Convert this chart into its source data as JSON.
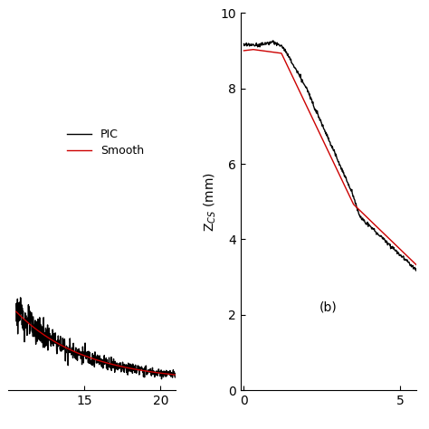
{
  "panel_a": {
    "xlim": [
      10,
      21
    ],
    "ylim": [
      0.0,
      0.35
    ],
    "xticks": [
      15,
      20
    ],
    "start_x": 10.5
  },
  "panel_b": {
    "ylabel": "Z$_{CS}$ (mm)",
    "xlim": [
      -0.1,
      5.5
    ],
    "ylim": [
      0,
      10
    ],
    "xticks": [
      0,
      5
    ],
    "yticks": [
      0,
      2,
      4,
      6,
      8,
      10
    ],
    "label_b": "(b)"
  },
  "legend": {
    "pic_label": "PIC",
    "smooth_label": "Smooth",
    "pic_color": "#000000",
    "smooth_color": "#cc0000"
  },
  "line_width": 1.0
}
